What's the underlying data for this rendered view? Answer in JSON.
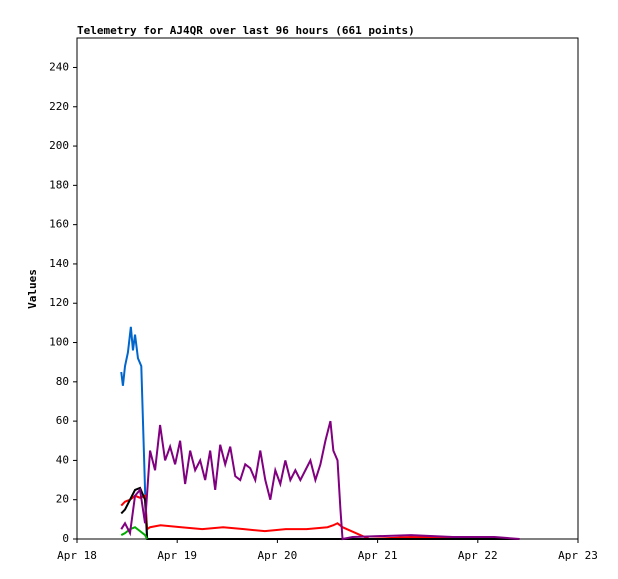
{
  "chart_data": {
    "type": "line",
    "title": "Telemetry for AJ4QR over last 96 hours (661 points)",
    "y_label": "Values",
    "xlim": [
      0,
      120
    ],
    "xticks": [
      {
        "value": 0,
        "label": "Apr 18"
      },
      {
        "value": 24,
        "label": "Apr 19"
      },
      {
        "value": 48,
        "label": "Apr 20"
      },
      {
        "value": 72,
        "label": "Apr 21"
      },
      {
        "value": 96,
        "label": "Apr 22"
      },
      {
        "value": 120,
        "label": "Apr 23"
      }
    ],
    "ylim": [
      0,
      255
    ],
    "yticks": [
      0,
      20,
      40,
      60,
      80,
      100,
      120,
      140,
      160,
      180,
      200,
      220,
      240
    ],
    "series": [
      {
        "color": "#0066cc",
        "x": [
          10.6,
          11.0,
          11.5,
          12.2,
          12.9,
          13.4,
          13.9,
          14.6,
          15.4,
          15.8,
          16.3,
          16.8
        ],
        "values": [
          85,
          78,
          88,
          95,
          108,
          96,
          104,
          92,
          88,
          60,
          25,
          0
        ]
      },
      {
        "color": "#ff0000",
        "x": [
          10.6,
          11.5,
          12.7,
          13.9,
          15.1,
          16.3,
          16.8,
          17.5,
          20,
          25,
          30,
          35,
          40,
          45,
          50,
          55,
          60,
          61.4,
          62.4,
          63.6,
          70,
          80,
          100,
          106
        ],
        "values": [
          17,
          19,
          20,
          22,
          21,
          22,
          5,
          6,
          7,
          6,
          5,
          6,
          5,
          4,
          5,
          5,
          6,
          7,
          8,
          6,
          0,
          1,
          0,
          0
        ]
      },
      {
        "color": "#000000",
        "x": [
          10.6,
          11.5,
          12.7,
          13.9,
          15.1,
          16.3,
          16.8,
          30,
          106
        ],
        "values": [
          13,
          15,
          20,
          25,
          26,
          20,
          0,
          0,
          0
        ]
      },
      {
        "color": "#00aa00",
        "x": [
          10.6,
          11.5,
          12.7,
          13.9,
          15.1,
          16.3,
          16.8
        ],
        "values": [
          2,
          3,
          5,
          6,
          4,
          2,
          0
        ]
      },
      {
        "color": "#800080",
        "x": [
          10.6,
          11.5,
          12.7,
          13.9,
          15.1,
          16.3,
          17.5,
          18.7,
          19.9,
          21.1,
          22.3,
          23.5,
          24.7,
          25.9,
          27.1,
          28.3,
          29.5,
          30.7,
          31.9,
          33.1,
          34.3,
          35.5,
          36.7,
          37.9,
          39.1,
          40.3,
          41.5,
          42.7,
          43.9,
          45.1,
          46.3,
          47.5,
          48.7,
          49.9,
          51.1,
          52.3,
          53.5,
          54.7,
          55.9,
          57.1,
          58.3,
          59.5,
          60.7,
          61.4,
          62.4,
          63.1,
          63.6,
          66,
          80,
          90,
          100,
          106
        ],
        "values": [
          5,
          8,
          3,
          22,
          25,
          8,
          45,
          35,
          58,
          40,
          47,
          38,
          50,
          28,
          45,
          35,
          40,
          30,
          45,
          25,
          48,
          38,
          47,
          32,
          30,
          38,
          36,
          30,
          45,
          30,
          20,
          35,
          28,
          40,
          30,
          35,
          30,
          35,
          40,
          30,
          38,
          50,
          60,
          45,
          40,
          15,
          0,
          1,
          2,
          1,
          1,
          0
        ]
      }
    ]
  }
}
